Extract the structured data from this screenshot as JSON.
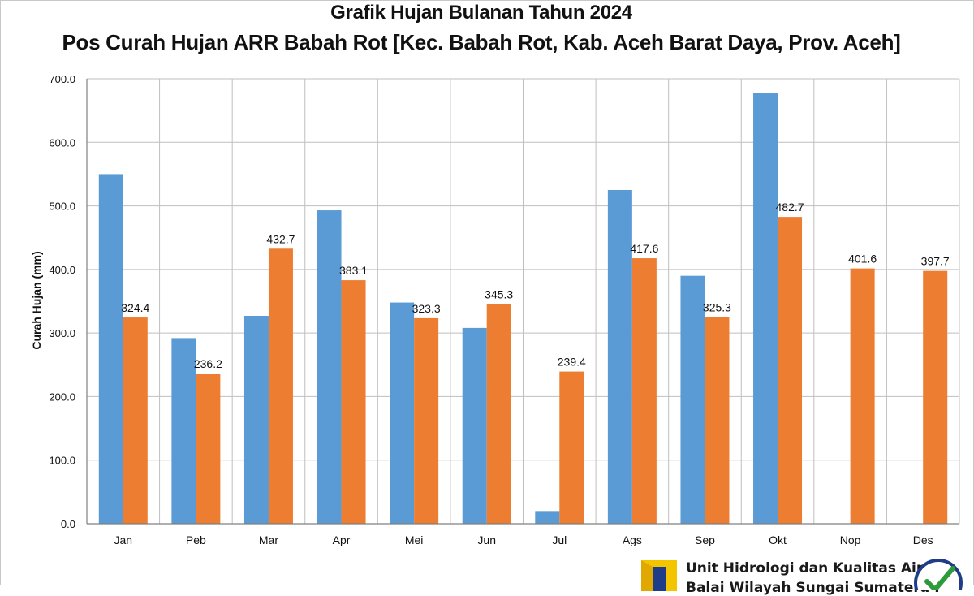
{
  "chart_data": {
    "type": "bar",
    "title": "Grafik Hujan Bulanan Tahun 2024",
    "subtitle": "Pos Curah Hujan ARR Babah Rot [Kec. Babah Rot, Kab. Aceh Barat Daya, Prov. Aceh]",
    "xlabel": "",
    "ylabel": "Curah Hujan (mm)",
    "ylim": [
      0,
      700
    ],
    "yticks": [
      "0.0",
      "100.0",
      "200.0",
      "300.0",
      "400.0",
      "500.0",
      "600.0",
      "700.0"
    ],
    "grid": true,
    "categories": [
      "Jan",
      "Peb",
      "Mar",
      "Apr",
      "Mei",
      "Jun",
      "Jul",
      "Ags",
      "Sep",
      "Okt",
      "Nop",
      "Des"
    ],
    "series": [
      {
        "color": "#5b9bd5",
        "values": [
          550,
          292,
          327,
          493,
          348,
          308,
          20,
          525,
          390,
          677,
          null,
          null
        ],
        "labels": [
          "",
          "",
          "",
          "",
          "",
          "",
          "",
          "",
          "",
          "",
          "",
          ""
        ]
      },
      {
        "color": "#ed7d31",
        "values": [
          324.4,
          236.2,
          432.7,
          383.1,
          323.3,
          345.3,
          239.4,
          417.6,
          325.3,
          482.7,
          401.6,
          397.7
        ],
        "labels": [
          "324.4",
          "236.2",
          "432.7",
          "383.1",
          "323.3",
          "345.3",
          "239.4",
          "417.6",
          "325.3",
          "482.7",
          "401.6",
          "397.7"
        ]
      }
    ]
  },
  "footer": {
    "line1": "Unit Hidrologi dan Kualitas Air",
    "line2": "Balai Wilayah Sungai Sumatera I"
  },
  "colors": {
    "logo_yellow": "#f2c500",
    "logo_blue": "#1f3c88",
    "badge_green": "#2e9b3a"
  }
}
